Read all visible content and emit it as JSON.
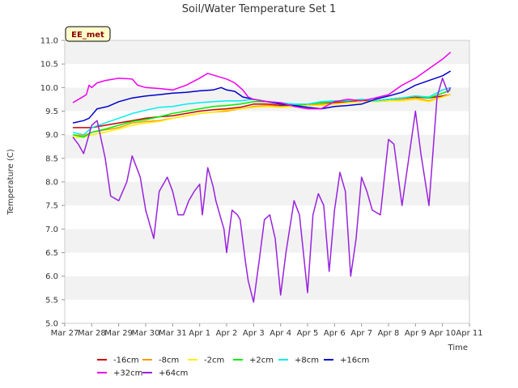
{
  "chart_data": {
    "type": "line",
    "title": "Soil/Water Temperature Set 1",
    "xlabel": "Time",
    "ylabel": "Temperature (C)",
    "badge": "EE_met",
    "ylim": [
      5.0,
      11.0
    ],
    "xlim": [
      0,
      15
    ],
    "yticks": [
      5.0,
      5.5,
      6.0,
      6.5,
      7.0,
      7.5,
      8.0,
      8.5,
      9.0,
      9.5,
      10.0,
      10.5,
      11.0
    ],
    "ytick_labels": [
      "5.0",
      "5.5",
      "6.0",
      "6.5",
      "7.0",
      "7.5",
      "8.0",
      "8.5",
      "9.0",
      "9.5",
      "10.0",
      "10.5",
      "11.0"
    ],
    "xticks": [
      0,
      1,
      2,
      3,
      4,
      5,
      6,
      7,
      8,
      9,
      10,
      11,
      12,
      13,
      14,
      15
    ],
    "xtick_labels": [
      "Mar 27",
      "Mar 28",
      "Mar 29",
      "Mar 30",
      "Mar 31",
      "Apr 1",
      "Apr 2",
      "Apr 3",
      "Apr 4",
      "Apr 5",
      "Apr 6",
      "Apr 7",
      "Apr 8",
      "Apr 9",
      "Apr 10",
      "Apr 11"
    ],
    "grid": "horizontal bands",
    "legend_position": "bottom",
    "series": [
      {
        "name": "-16cm",
        "color": "#cc0000",
        "x": [
          0.3,
          0.7,
          1.0,
          1.5,
          2.0,
          2.5,
          3.0,
          3.5,
          4.0,
          4.5,
          5.0,
          5.5,
          6.0,
          6.5,
          7.0,
          7.5,
          8.0,
          8.5,
          9.0,
          9.5,
          10.0,
          10.5,
          11.0,
          11.5,
          12.0,
          12.5,
          13.0,
          13.5,
          14.0,
          14.3
        ],
        "y": [
          9.15,
          9.15,
          9.15,
          9.2,
          9.25,
          9.3,
          9.35,
          9.38,
          9.4,
          9.45,
          9.5,
          9.53,
          9.55,
          9.58,
          9.65,
          9.65,
          9.62,
          9.6,
          9.65,
          9.68,
          9.68,
          9.7,
          9.72,
          9.72,
          9.75,
          9.78,
          9.8,
          9.78,
          9.82,
          9.85
        ]
      },
      {
        "name": "-8cm",
        "color": "#ff9900",
        "x": [
          0.3,
          0.7,
          1.0,
          1.5,
          2.0,
          2.5,
          3.0,
          3.5,
          4.0,
          4.5,
          5.0,
          5.5,
          6.0,
          6.5,
          7.0,
          7.5,
          8.0,
          8.5,
          9.0,
          9.5,
          10.0,
          10.5,
          11.0,
          11.5,
          12.0,
          12.5,
          13.0,
          13.5,
          14.0,
          14.3
        ],
        "y": [
          9.0,
          8.98,
          9.05,
          9.1,
          9.15,
          9.25,
          9.28,
          9.3,
          9.35,
          9.4,
          9.45,
          9.48,
          9.5,
          9.55,
          9.6,
          9.62,
          9.6,
          9.6,
          9.62,
          9.65,
          9.65,
          9.68,
          9.7,
          9.7,
          9.72,
          9.75,
          9.78,
          9.72,
          9.8,
          9.85
        ]
      },
      {
        "name": "-2cm",
        "color": "#ffee00",
        "x": [
          0.3,
          0.7,
          1.0,
          1.5,
          2.0,
          2.5,
          3.0,
          3.5,
          4.0,
          4.5,
          5.0,
          5.5,
          6.0,
          6.5,
          7.0,
          7.5,
          8.0,
          8.5,
          9.0,
          9.5,
          10.0,
          10.5,
          11.0,
          11.5,
          12.0,
          12.5,
          13.0,
          13.5,
          14.0,
          14.3
        ],
        "y": [
          8.95,
          8.95,
          9.0,
          9.05,
          9.12,
          9.2,
          9.25,
          9.28,
          9.35,
          9.4,
          9.45,
          9.48,
          9.52,
          9.55,
          9.58,
          9.6,
          9.58,
          9.6,
          9.62,
          9.62,
          9.65,
          9.68,
          9.7,
          9.7,
          9.72,
          9.72,
          9.75,
          9.7,
          9.8,
          9.85
        ]
      },
      {
        "name": "+2cm",
        "color": "#00ee00",
        "x": [
          0.3,
          0.7,
          1.0,
          1.5,
          2.0,
          2.5,
          3.0,
          3.5,
          4.0,
          4.5,
          5.0,
          5.5,
          6.0,
          6.5,
          7.0,
          7.5,
          8.0,
          8.5,
          9.0,
          9.5,
          10.0,
          10.5,
          11.0,
          11.5,
          12.0,
          12.5,
          13.0,
          13.5,
          14.0,
          14.3
        ],
        "y": [
          9.0,
          8.95,
          9.05,
          9.12,
          9.2,
          9.28,
          9.32,
          9.38,
          9.45,
          9.5,
          9.55,
          9.6,
          9.62,
          9.65,
          9.7,
          9.7,
          9.65,
          9.62,
          9.65,
          9.68,
          9.7,
          9.72,
          9.75,
          9.72,
          9.75,
          9.78,
          9.82,
          9.78,
          9.88,
          9.95
        ]
      },
      {
        "name": "+8cm",
        "color": "#00eeee",
        "x": [
          0.3,
          0.7,
          1.0,
          1.5,
          2.0,
          2.5,
          3.0,
          3.5,
          4.0,
          4.5,
          5.0,
          5.5,
          6.0,
          6.5,
          7.0,
          7.5,
          8.0,
          8.5,
          9.0,
          9.5,
          10.0,
          10.5,
          11.0,
          11.5,
          12.0,
          12.5,
          13.0,
          13.5,
          14.0,
          14.3
        ],
        "y": [
          9.05,
          9.0,
          9.15,
          9.25,
          9.35,
          9.45,
          9.52,
          9.58,
          9.6,
          9.65,
          9.68,
          9.7,
          9.72,
          9.72,
          9.75,
          9.7,
          9.68,
          9.65,
          9.65,
          9.7,
          9.72,
          9.72,
          9.75,
          9.72,
          9.75,
          9.78,
          9.82,
          9.8,
          9.95,
          10.0
        ]
      },
      {
        "name": "+16cm",
        "color": "#0000cc",
        "x": [
          0.3,
          0.7,
          0.9,
          1.2,
          1.6,
          2.0,
          2.5,
          3.0,
          3.5,
          4.0,
          4.5,
          5.0,
          5.5,
          5.8,
          6.0,
          6.3,
          6.6,
          7.0,
          7.5,
          8.0,
          8.5,
          9.0,
          9.5,
          10.0,
          10.5,
          11.0,
          11.5,
          12.0,
          12.5,
          13.0,
          13.5,
          14.0,
          14.3
        ],
        "y": [
          9.25,
          9.3,
          9.35,
          9.55,
          9.6,
          9.7,
          9.78,
          9.82,
          9.85,
          9.88,
          9.9,
          9.93,
          9.95,
          10.0,
          9.95,
          9.92,
          9.8,
          9.75,
          9.7,
          9.65,
          9.62,
          9.58,
          9.55,
          9.6,
          9.62,
          9.65,
          9.75,
          9.82,
          9.9,
          10.05,
          10.15,
          10.25,
          10.35
        ]
      },
      {
        "name": "+32cm",
        "color": "#ee00ee",
        "x": [
          0.3,
          0.6,
          0.8,
          0.9,
          1.0,
          1.2,
          1.5,
          2.0,
          2.5,
          2.7,
          3.0,
          3.5,
          4.0,
          4.5,
          5.0,
          5.3,
          5.6,
          6.0,
          6.3,
          6.6,
          6.8,
          7.0,
          7.5,
          8.0,
          8.5,
          9.0,
          9.5,
          10.0,
          10.5,
          11.0,
          11.5,
          12.0,
          12.5,
          13.0,
          13.5,
          14.0,
          14.3
        ],
        "y": [
          9.68,
          9.78,
          9.85,
          10.05,
          10.0,
          10.1,
          10.15,
          10.2,
          10.18,
          10.05,
          10.0,
          9.98,
          9.95,
          10.05,
          10.2,
          10.3,
          10.25,
          10.18,
          10.1,
          9.95,
          9.8,
          9.75,
          9.7,
          9.68,
          9.6,
          9.55,
          9.55,
          9.7,
          9.75,
          9.72,
          9.78,
          9.85,
          10.05,
          10.2,
          10.4,
          10.6,
          10.75
        ]
      },
      {
        "name": "+64cm",
        "color": "#9922dd",
        "x": [
          0.3,
          0.5,
          0.7,
          0.8,
          1.0,
          1.2,
          1.5,
          1.7,
          2.0,
          2.3,
          2.5,
          2.8,
          3.0,
          3.3,
          3.5,
          3.8,
          4.0,
          4.2,
          4.4,
          4.6,
          4.8,
          5.0,
          5.1,
          5.3,
          5.5,
          5.6,
          5.8,
          5.9,
          6.0,
          6.2,
          6.4,
          6.5,
          6.7,
          6.8,
          7.0,
          7.2,
          7.4,
          7.6,
          7.8,
          8.0,
          8.2,
          8.5,
          8.7,
          9.0,
          9.2,
          9.4,
          9.6,
          9.8,
          10.0,
          10.2,
          10.4,
          10.6,
          10.8,
          11.0,
          11.2,
          11.4,
          11.7,
          12.0,
          12.2,
          12.5,
          12.8,
          13.0,
          13.2,
          13.5,
          13.8,
          14.0,
          14.2,
          14.3
        ],
        "y": [
          8.95,
          8.8,
          8.6,
          8.8,
          9.2,
          9.3,
          8.5,
          7.7,
          7.6,
          8.0,
          8.55,
          8.1,
          7.4,
          6.8,
          7.8,
          8.1,
          7.8,
          7.3,
          7.3,
          7.6,
          7.8,
          7.95,
          7.3,
          8.3,
          7.9,
          7.6,
          7.2,
          7.0,
          6.5,
          7.4,
          7.3,
          7.2,
          6.3,
          5.9,
          5.45,
          6.3,
          7.2,
          7.3,
          6.8,
          5.6,
          6.5,
          7.6,
          7.3,
          5.65,
          7.3,
          7.75,
          7.5,
          6.1,
          7.4,
          8.2,
          7.8,
          6.0,
          6.8,
          8.1,
          7.8,
          7.4,
          7.3,
          8.9,
          8.8,
          7.5,
          8.7,
          9.5,
          8.6,
          7.5,
          9.8,
          10.2,
          9.9,
          10.0
        ]
      }
    ]
  }
}
